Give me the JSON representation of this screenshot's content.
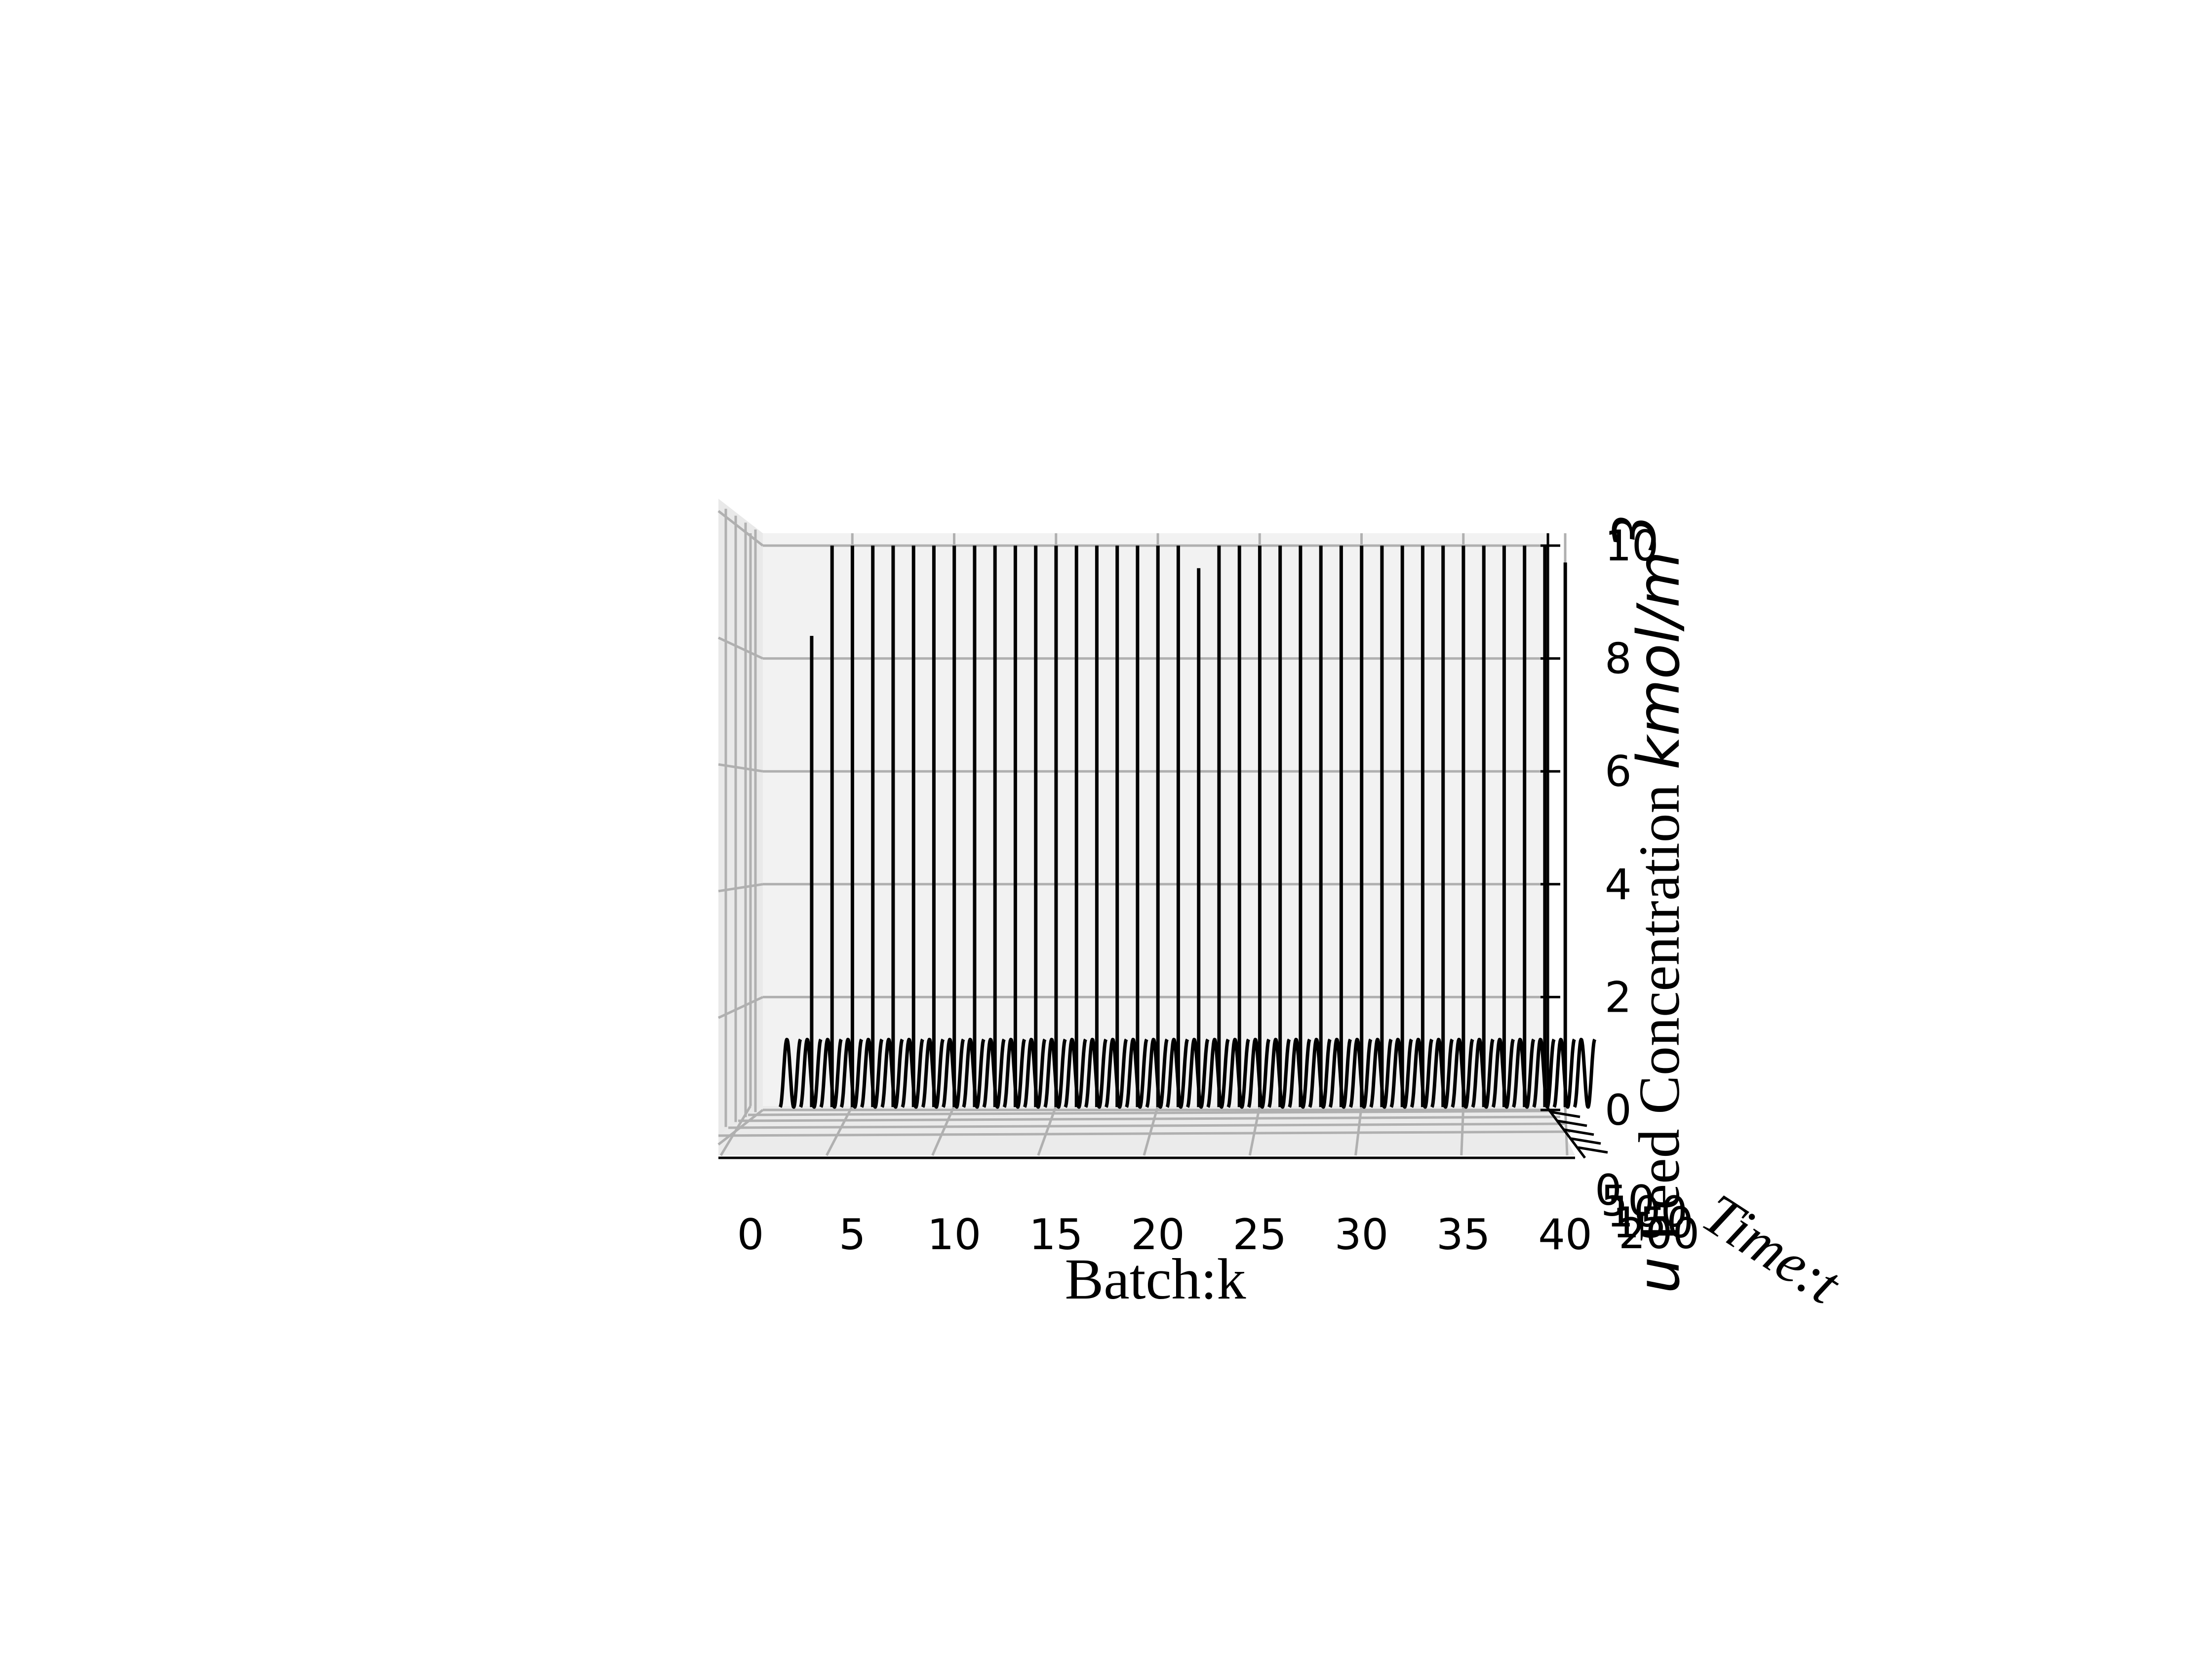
{
  "chart_data": {
    "type": "line3d",
    "view": "front (azimuth -90, elevation 0)",
    "xlabel": "Batch:k",
    "ylabel": "Time:t",
    "zlabel_parts": [
      "u",
      " Feed Concentration ",
      "kmol/m",
      "3"
    ],
    "x_ticks": [
      "0",
      "5",
      "10",
      "15",
      "20",
      "25",
      "30",
      "35",
      "40"
    ],
    "y_ticks": [
      "0",
      "50",
      "100",
      "150",
      "200"
    ],
    "z_ticks": [
      "0",
      "2",
      "4",
      "6",
      "8",
      "10"
    ],
    "xlim": [
      0,
      40
    ],
    "zlim": [
      0,
      10
    ],
    "pane_color": "#f2f2f2",
    "line_color": "#000000",
    "batches": [
      {
        "k": 1,
        "spike": 0.0
      },
      {
        "k": 2,
        "spike": 8.4
      },
      {
        "k": 3,
        "spike": 10.0
      },
      {
        "k": 4,
        "spike": 10.0
      },
      {
        "k": 5,
        "spike": 10.0
      },
      {
        "k": 6,
        "spike": 10.0
      },
      {
        "k": 7,
        "spike": 10.0
      },
      {
        "k": 8,
        "spike": 10.0
      },
      {
        "k": 9,
        "spike": 10.0
      },
      {
        "k": 10,
        "spike": 10.0
      },
      {
        "k": 11,
        "spike": 10.0
      },
      {
        "k": 12,
        "spike": 10.0
      },
      {
        "k": 13,
        "spike": 10.0
      },
      {
        "k": 14,
        "spike": 10.0
      },
      {
        "k": 15,
        "spike": 10.0
      },
      {
        "k": 16,
        "spike": 10.0
      },
      {
        "k": 17,
        "spike": 10.0
      },
      {
        "k": 18,
        "spike": 10.0
      },
      {
        "k": 19,
        "spike": 10.0
      },
      {
        "k": 20,
        "spike": 10.0
      },
      {
        "k": 21,
        "spike": 9.6
      },
      {
        "k": 22,
        "spike": 10.0
      },
      {
        "k": 23,
        "spike": 10.0
      },
      {
        "k": 24,
        "spike": 10.0
      },
      {
        "k": 25,
        "spike": 10.0
      },
      {
        "k": 26,
        "spike": 10.0
      },
      {
        "k": 27,
        "spike": 10.0
      },
      {
        "k": 28,
        "spike": 10.0
      },
      {
        "k": 29,
        "spike": 10.0
      },
      {
        "k": 30,
        "spike": 10.0
      },
      {
        "k": 31,
        "spike": 10.0
      },
      {
        "k": 32,
        "spike": 10.0
      },
      {
        "k": 33,
        "spike": 10.0
      },
      {
        "k": 34,
        "spike": 10.0
      },
      {
        "k": 35,
        "spike": 10.0
      },
      {
        "k": 36,
        "spike": 10.0
      },
      {
        "k": 37,
        "spike": 10.0
      },
      {
        "k": 38,
        "spike": 10.0
      },
      {
        "k": 39,
        "spike": 9.7
      },
      {
        "k": 40,
        "spike": 0.0
      }
    ],
    "baseline_oscillation_amplitude": 1.2
  }
}
